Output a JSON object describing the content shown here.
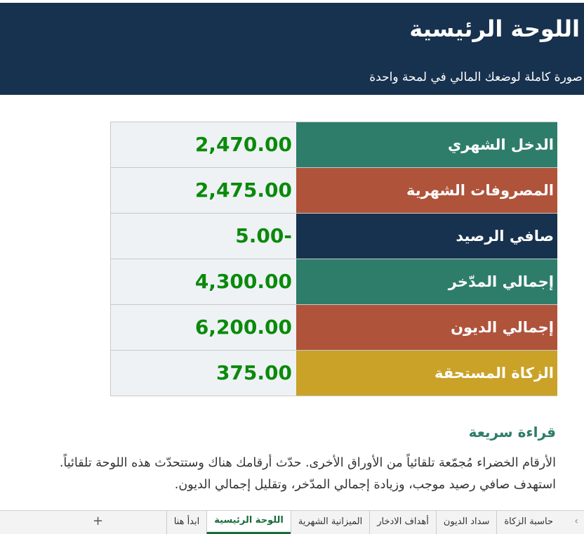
{
  "header": {
    "title": "اللوحة الرئيسية",
    "subtitle": "صورة كاملة لوضعك المالي في لمحة واحدة"
  },
  "table": {
    "rows": [
      [
        "الدخل الشهري",
        "2,470.00"
      ],
      [
        "المصروفات الشهرية",
        "2,475.00"
      ],
      [
        "صافي الرصيد",
        "5.00-"
      ],
      [
        "إجمالي المدّخر",
        "4,300.00"
      ],
      [
        "إجمالي الديون",
        "6,200.00"
      ],
      [
        "الزكاة المستحقة",
        "375.00"
      ]
    ]
  },
  "quick_read": {
    "title": "قراءة سريعة",
    "text": "الأرقام الخضراء مُجمّعة تلقائياً من الأوراق الأخرى. حدّث أرقامك هناك وستتحدّث هذه اللوحة تلقائياً. استهدف صافي رصيد موجب، وزيادة إجمالي المدّخر، وتقليل إجمالي الديون."
  },
  "tabs": [
    "ابدأ هنا",
    "اللوحة الرئيسية",
    "الميزانية الشهرية",
    "أهداف الادخار",
    "سداد الديون",
    "حاسبة الزكاة"
  ],
  "add_sheet": "+"
}
